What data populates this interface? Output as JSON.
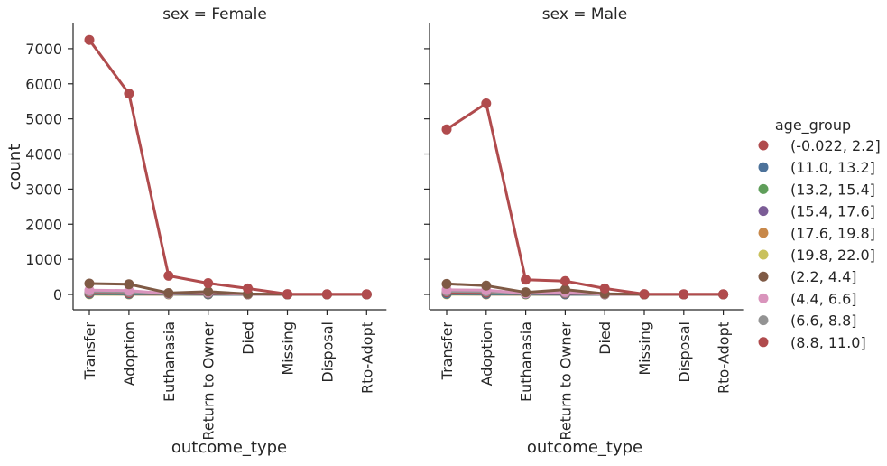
{
  "figure": {
    "y_axis_label": "count",
    "x_axis_label": "outcome_type"
  },
  "legend": {
    "title": "age_group"
  },
  "chart_data": {
    "type": "line",
    "categories": [
      "Transfer",
      "Adoption",
      "Euthanasia",
      "Return to Owner",
      "Died",
      "Missing",
      "Disposal",
      "Rto-Adopt"
    ],
    "xlabel": "outcome_type",
    "ylabel": "count",
    "ylim": [
      -450,
      7700
    ],
    "yticks": [
      0,
      1000,
      2000,
      3000,
      4000,
      5000,
      6000,
      7000
    ],
    "legend_position": "right",
    "grid": false,
    "panels": [
      {
        "title": "sex = Female",
        "series": [
          {
            "name": "(-0.022, 2.2]",
            "color": "#b04b4d",
            "values": [
              7250,
              5720,
              530,
              320,
              170,
              10,
              5,
              5
            ]
          },
          {
            "name": "(11.0, 13.2]",
            "color": "#4c729a",
            "values": [
              30,
              25,
              15,
              10,
              5,
              0,
              0,
              0
            ]
          },
          {
            "name": "(13.2, 15.4]",
            "color": "#5f9e5a",
            "values": [
              20,
              15,
              10,
              5,
              5,
              0,
              0,
              0
            ]
          },
          {
            "name": "(15.4, 17.6]",
            "color": "#7b5c96",
            "values": [
              15,
              10,
              10,
              5,
              3,
              0,
              0,
              0
            ]
          },
          {
            "name": "(17.6, 19.8]",
            "color": "#c8884a",
            "values": [
              10,
              5,
              5,
              5,
              2,
              0,
              0,
              0
            ]
          },
          {
            "name": "(19.8, 22.0]",
            "color": "#c9c15c",
            "values": [
              5,
              5,
              3,
              2,
              1,
              0,
              0,
              0
            ]
          },
          {
            "name": "(2.2, 4.4]",
            "color": "#7f5a45",
            "values": [
              310,
              290,
              40,
              80,
              15,
              0,
              0,
              0
            ]
          },
          {
            "name": "(4.4, 6.6]",
            "color": "#d994bc",
            "values": [
              120,
              110,
              25,
              60,
              10,
              0,
              0,
              0
            ]
          },
          {
            "name": "(6.6, 8.8]",
            "color": "#939393",
            "values": [
              80,
              70,
              20,
              40,
              8,
              0,
              0,
              0
            ]
          },
          {
            "name": "(8.8, 11.0]",
            "color": "#b04b4d",
            "values": [
              50,
              40,
              20,
              25,
              5,
              0,
              0,
              0
            ]
          }
        ]
      },
      {
        "title": "sex = Male",
        "series": [
          {
            "name": "(-0.022, 2.2]",
            "color": "#b04b4d",
            "values": [
              4700,
              5440,
              420,
              380,
              170,
              10,
              5,
              5
            ]
          },
          {
            "name": "(11.0, 13.2]",
            "color": "#4c729a",
            "values": [
              30,
              25,
              15,
              10,
              5,
              0,
              0,
              0
            ]
          },
          {
            "name": "(13.2, 15.4]",
            "color": "#5f9e5a",
            "values": [
              20,
              15,
              10,
              5,
              5,
              0,
              0,
              0
            ]
          },
          {
            "name": "(15.4, 17.6]",
            "color": "#7b5c96",
            "values": [
              15,
              10,
              10,
              5,
              3,
              0,
              0,
              0
            ]
          },
          {
            "name": "(17.6, 19.8]",
            "color": "#c8884a",
            "values": [
              10,
              5,
              5,
              5,
              2,
              0,
              0,
              0
            ]
          },
          {
            "name": "(19.8, 22.0]",
            "color": "#c9c15c",
            "values": [
              5,
              5,
              3,
              2,
              1,
              0,
              0,
              0
            ]
          },
          {
            "name": "(2.2, 4.4]",
            "color": "#7f5a45",
            "values": [
              300,
              250,
              60,
              140,
              20,
              0,
              0,
              0
            ]
          },
          {
            "name": "(4.4, 6.6]",
            "color": "#d994bc",
            "values": [
              130,
              120,
              30,
              70,
              10,
              0,
              0,
              0
            ]
          },
          {
            "name": "(6.6, 8.8]",
            "color": "#939393",
            "values": [
              90,
              80,
              25,
              45,
              8,
              0,
              0,
              0
            ]
          },
          {
            "name": "(8.8, 11.0]",
            "color": "#b04b4d",
            "values": [
              60,
              50,
              25,
              30,
              6,
              0,
              0,
              0
            ]
          }
        ]
      }
    ]
  }
}
